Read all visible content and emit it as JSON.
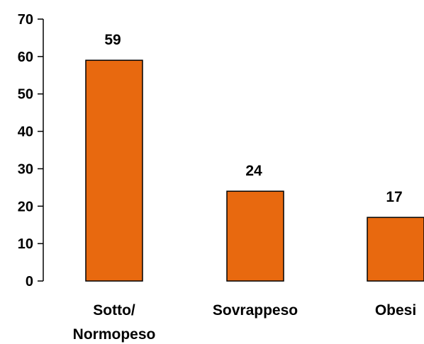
{
  "chart_data": {
    "type": "bar",
    "categories": [
      [
        "Sotto/",
        "Normopeso"
      ],
      [
        "Sovrappeso"
      ],
      [
        "Obesi"
      ]
    ],
    "values": [
      59,
      24,
      17
    ],
    "data_labels": [
      "59",
      "24",
      "17"
    ],
    "ylim": [
      0,
      70
    ],
    "yticks": [
      0,
      10,
      20,
      30,
      40,
      50,
      60,
      70
    ],
    "grid": false,
    "legend": "none",
    "bar_color": "#E8690F",
    "bar_edge_color": "#000000",
    "axis_color": "#000000"
  }
}
